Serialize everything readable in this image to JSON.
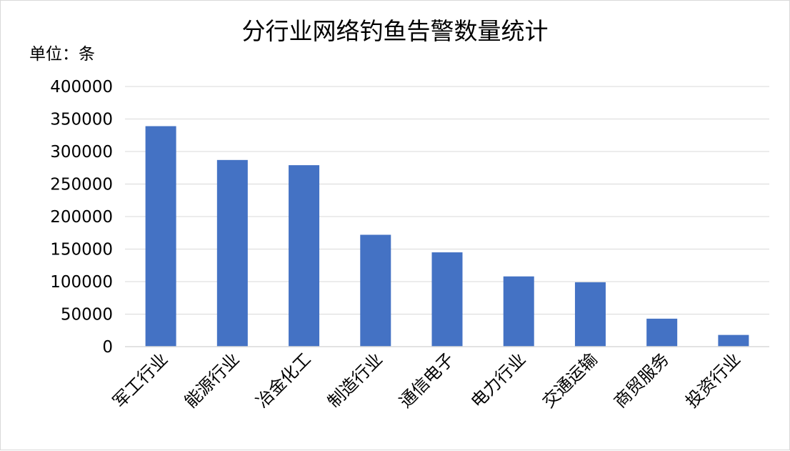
{
  "chart_data": {
    "type": "bar",
    "title": "分行业网络钓鱼告警数量统计",
    "unit_label": "单位：条",
    "categories": [
      "军工行业",
      "能源行业",
      "冶金化工",
      "制造行业",
      "通信电子",
      "电力行业",
      "交通运输",
      "商贸服务",
      "投资行业"
    ],
    "values": [
      339000,
      287000,
      279000,
      172000,
      145000,
      108000,
      99000,
      43000,
      18000
    ],
    "ylim": [
      0,
      400000
    ],
    "yticks": [
      "0",
      "50000",
      "100000",
      "150000",
      "200000",
      "250000",
      "300000",
      "350000",
      "400000"
    ],
    "bar_color": "#4472C4",
    "gridline_color": "#d9d9d9",
    "grid": true,
    "legend": "none"
  }
}
